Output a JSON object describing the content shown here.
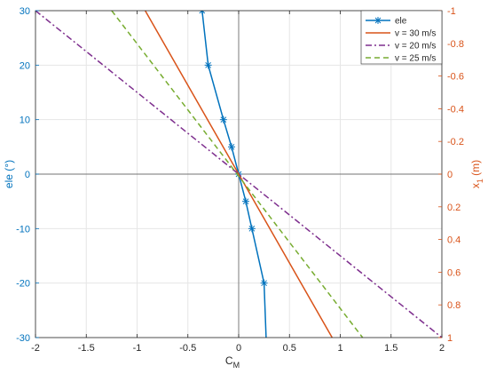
{
  "chart_data": {
    "type": "line",
    "xlabel": "C",
    "xlabel_sub": "M",
    "ylabel_left": "ele (°)",
    "ylabel_right": "x",
    "ylabel_right_sub": "1",
    "ylabel_right_unit": " (m)",
    "xlim": [
      -2,
      2
    ],
    "ylim_left": [
      -30,
      30
    ],
    "ylim_right": [
      1,
      -1
    ],
    "right_axis_reversed": true,
    "grid": true,
    "legend_placement": "top-right",
    "x_ticks": [
      -2,
      -1.5,
      -1,
      -0.5,
      0,
      0.5,
      1,
      1.5,
      2
    ],
    "x_tick_labels": [
      "-2",
      "-1.5",
      "-1",
      "-0.5",
      "0",
      "0.5",
      "1",
      "1.5",
      "2"
    ],
    "left_ticks": [
      30,
      20,
      10,
      0,
      -10,
      -20,
      -30
    ],
    "left_tick_labels": [
      "30",
      "20",
      "10",
      "0",
      "-10",
      "-20",
      "-30"
    ],
    "right_ticks": [
      -1,
      -0.8,
      -0.6,
      -0.4,
      -0.2,
      0,
      0.2,
      0.4,
      0.6,
      0.8,
      1
    ],
    "right_tick_labels": [
      "-1",
      "-0.8",
      "-0.6",
      "-0.4",
      "-0.2",
      "0",
      "0.2",
      "0.4",
      "0.6",
      "0.8",
      "1"
    ],
    "colors": {
      "left_axis": "#0072BD",
      "right_axis": "#D95319",
      "grid": "#e6e6e6",
      "frame": "#262626"
    },
    "series": [
      {
        "name": "ele",
        "axis": "left",
        "color": "#0072BD",
        "style": "solid",
        "marker": "asterisk",
        "x": [
          -0.36,
          -0.3,
          -0.15,
          -0.07,
          0,
          0.07,
          0.13,
          0.25,
          0.27
        ],
        "y": [
          30,
          20,
          10,
          5,
          0,
          -5,
          -10,
          -20,
          -30
        ],
        "marker_mask": [
          true,
          true,
          true,
          true,
          true,
          true,
          true,
          true,
          false
        ]
      },
      {
        "name": "v = 30 m/s",
        "axis": "right",
        "color": "#D95319",
        "style": "solid",
        "x": [
          -0.92,
          0.92
        ],
        "y": [
          -1,
          1
        ]
      },
      {
        "name": "v = 20 m/s",
        "axis": "right",
        "color": "#7E2F8E",
        "style": "dashdot",
        "x": [
          -2,
          2
        ],
        "y": [
          -1,
          1
        ]
      },
      {
        "name": "v = 25 m/s",
        "axis": "right",
        "color": "#77AC30",
        "style": "dashed",
        "x": [
          -1.25,
          1.22
        ],
        "y": [
          -1,
          1
        ]
      }
    ]
  }
}
